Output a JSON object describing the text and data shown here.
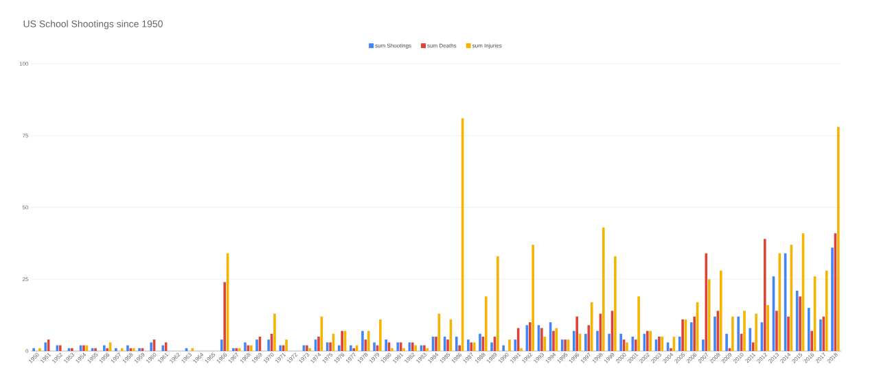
{
  "chart_data": {
    "type": "bar",
    "title": "US School Shootings since 1950",
    "categories": [
      "1950",
      "1951",
      "1952",
      "1953",
      "1954",
      "1955",
      "1956",
      "1957",
      "1958",
      "1959",
      "1960",
      "1961",
      "1962",
      "1963",
      "1964",
      "1965",
      "1966",
      "1967",
      "1968",
      "1969",
      "1970",
      "1971",
      "1972",
      "1973",
      "1974",
      "1975",
      "1976",
      "1977",
      "1978",
      "1979",
      "1980",
      "1981",
      "1982",
      "1983",
      "1984",
      "1985",
      "1986",
      "1987",
      "1988",
      "1989",
      "1990",
      "1991",
      "1992",
      "1993",
      "1994",
      "1995",
      "1996",
      "1997",
      "1998",
      "1999",
      "2000",
      "2001",
      "2002",
      "2003",
      "2004",
      "2005",
      "2006",
      "2007",
      "2008",
      "2009",
      "2010",
      "2011",
      "2012",
      "2013",
      "2014",
      "2015",
      "2016",
      "2017",
      "2018"
    ],
    "series": [
      {
        "name": "sum Shootings",
        "color": "#4285f4",
        "values": [
          1,
          3,
          2,
          1,
          2,
          1,
          2,
          1,
          2,
          1,
          3,
          2,
          0,
          1,
          0,
          0,
          4,
          1,
          3,
          4,
          4,
          2,
          0,
          2,
          4,
          3,
          2,
          2,
          7,
          3,
          4,
          3,
          3,
          2,
          5,
          5,
          5,
          4,
          6,
          3,
          2,
          4,
          9,
          9,
          10,
          4,
          7,
          6,
          7,
          6,
          6,
          5,
          6,
          4,
          3,
          5,
          10,
          4,
          12,
          6,
          12,
          8,
          10,
          26,
          34,
          21,
          15,
          11,
          36
        ]
      },
      {
        "name": "sum Deaths",
        "color": "#db4437",
        "values": [
          0,
          4,
          2,
          1,
          2,
          1,
          1,
          0,
          1,
          1,
          4,
          3,
          0,
          0,
          0,
          0,
          24,
          1,
          2,
          5,
          6,
          2,
          0,
          2,
          5,
          3,
          7,
          1,
          4,
          2,
          3,
          3,
          3,
          2,
          5,
          4,
          2,
          3,
          5,
          5,
          0,
          8,
          10,
          8,
          7,
          4,
          12,
          9,
          13,
          14,
          4,
          4,
          7,
          5,
          1,
          11,
          12,
          34,
          14,
          1,
          6,
          3,
          39,
          14,
          12,
          19,
          7,
          12,
          41
        ]
      },
      {
        "name": "sum Injuries",
        "color": "#f4b400",
        "values": [
          1,
          0,
          0,
          0,
          2,
          0,
          3,
          1,
          1,
          0,
          0,
          0,
          0,
          1,
          0,
          0,
          34,
          1,
          2,
          0,
          13,
          4,
          0,
          1,
          12,
          6,
          7,
          2,
          7,
          11,
          1,
          1,
          2,
          1,
          13,
          11,
          81,
          3,
          19,
          33,
          4,
          1,
          37,
          5,
          8,
          4,
          6,
          17,
          43,
          33,
          3,
          19,
          7,
          5,
          5,
          11,
          17,
          25,
          28,
          12,
          14,
          13,
          16,
          34,
          37,
          41,
          26,
          28,
          78
        ]
      }
    ],
    "ylim": [
      0,
      100
    ],
    "yticks": [
      0,
      25,
      50,
      75,
      100
    ],
    "grid": "y",
    "legend": "top"
  }
}
